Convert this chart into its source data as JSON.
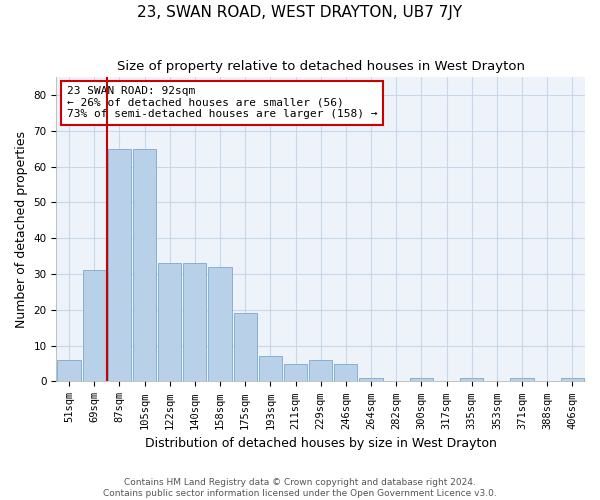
{
  "title": "23, SWAN ROAD, WEST DRAYTON, UB7 7JY",
  "subtitle": "Size of property relative to detached houses in West Drayton",
  "xlabel": "Distribution of detached houses by size in West Drayton",
  "ylabel": "Number of detached properties",
  "categories": [
    "51sqm",
    "69sqm",
    "87sqm",
    "105sqm",
    "122sqm",
    "140sqm",
    "158sqm",
    "175sqm",
    "193sqm",
    "211sqm",
    "229sqm",
    "246sqm",
    "264sqm",
    "282sqm",
    "300sqm",
    "317sqm",
    "335sqm",
    "353sqm",
    "371sqm",
    "388sqm",
    "406sqm"
  ],
  "values": [
    6,
    31,
    65,
    65,
    33,
    33,
    32,
    19,
    7,
    5,
    6,
    5,
    1,
    0,
    1,
    0,
    1,
    0,
    1,
    0,
    1
  ],
  "bar_color": "#b8d0e8",
  "bar_edgecolor": "#7aaad0",
  "vline_x_idx": 2,
  "vline_color": "#cc0000",
  "annotation_text": "23 SWAN ROAD: 92sqm\n← 26% of detached houses are smaller (56)\n73% of semi-detached houses are larger (158) →",
  "annotation_box_facecolor": "white",
  "annotation_box_edgecolor": "#cc0000",
  "ylim": [
    0,
    85
  ],
  "yticks": [
    0,
    10,
    20,
    30,
    40,
    50,
    60,
    70,
    80
  ],
  "grid_color": "#c8d8e8",
  "plot_bg_color": "#eef3fa",
  "fig_bg_color": "white",
  "footer": "Contains HM Land Registry data © Crown copyright and database right 2024.\nContains public sector information licensed under the Open Government Licence v3.0.",
  "title_fontsize": 11,
  "subtitle_fontsize": 9.5,
  "xlabel_fontsize": 9,
  "ylabel_fontsize": 9,
  "tick_fontsize": 7.5,
  "annotation_fontsize": 8,
  "footer_fontsize": 6.5
}
